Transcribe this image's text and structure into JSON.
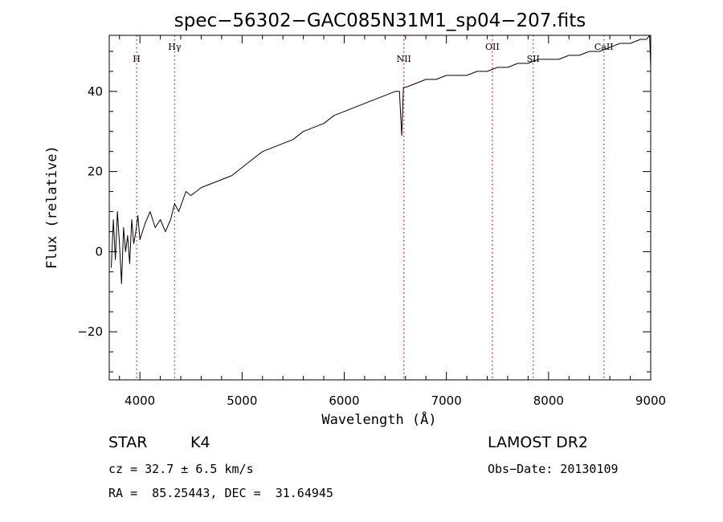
{
  "chart_data": {
    "type": "line",
    "title": "spec−56302−GAC085N31M1_sp04−207.fits",
    "xlabel": "Wavelength (Å)",
    "ylabel": "Flux (relative)",
    "xlim": [
      3700,
      9000
    ],
    "ylim": [
      -32,
      54
    ],
    "x_ticks": [
      4000,
      5000,
      6000,
      7000,
      8000,
      9000
    ],
    "x_tick_labels": [
      "4000",
      "5000",
      "6000",
      "7000",
      "8000",
      "9000"
    ],
    "y_ticks": [
      -20,
      0,
      20,
      40
    ],
    "y_tick_labels": [
      "−20",
      "0",
      "20",
      "40"
    ],
    "x_minor_step": 200,
    "y_minor_step": 5,
    "grid": false,
    "series": [
      {
        "x": [
          3720,
          3740,
          3760,
          3780,
          3800,
          3820,
          3840,
          3860,
          3880,
          3900,
          3920,
          3940,
          3960,
          3980,
          4000,
          4050,
          4100,
          4150,
          4200,
          4250,
          4300,
          4340,
          4380,
          4450,
          4500,
          4600,
          4700,
          4800,
          4900,
          5000,
          5100,
          5200,
          5300,
          5400,
          5500,
          5600,
          5700,
          5800,
          5900,
          6000,
          6100,
          6200,
          6300,
          6400,
          6500,
          6540,
          6563,
          6580,
          6600,
          6700,
          6800,
          6900,
          7000,
          7100,
          7200,
          7300,
          7400,
          7500,
          7600,
          7700,
          7800,
          7900,
          8000,
          8100,
          8200,
          8300,
          8400,
          8500,
          8600,
          8700,
          8800,
          8900,
          8960,
          8990,
          9000
        ],
        "y": [
          -4,
          8,
          -2,
          10,
          2,
          -8,
          6,
          0,
          4,
          -3,
          8,
          2,
          5,
          9,
          3,
          7,
          10,
          6,
          8,
          5,
          8,
          12,
          10,
          15,
          14,
          16,
          17,
          18,
          19,
          21,
          23,
          25,
          26,
          27,
          28,
          30,
          31,
          32,
          34,
          35,
          36,
          37,
          38,
          39,
          40,
          40,
          29,
          41,
          41,
          42,
          43,
          43,
          44,
          44,
          44,
          45,
          45,
          46,
          46,
          47,
          47,
          48,
          48,
          48,
          49,
          49,
          50,
          50,
          51,
          52,
          52,
          53,
          53,
          54,
          46
        ]
      }
    ],
    "line_markers": [
      {
        "label": "H",
        "x": 3968
      },
      {
        "label": "Hγ",
        "x": 4340
      },
      {
        "label": "NII",
        "x": 6584
      },
      {
        "label": "OII",
        "x": 7450
      },
      {
        "label": "SII",
        "x": 7850
      },
      {
        "label": "CaII",
        "x": 8542
      }
    ]
  },
  "info": {
    "class_label": "STAR",
    "subclass": "K4",
    "survey": "LAMOST DR2",
    "cz": "cz = 32.7 ± 6.5 km/s",
    "obs_date": "Obs−Date: 20130109",
    "coords": "RA =  85.25443, DEC =  31.64945"
  },
  "colors": {
    "line": "#000000",
    "marker": "#d02020",
    "axis": "#000000",
    "background": "#ffffff"
  }
}
